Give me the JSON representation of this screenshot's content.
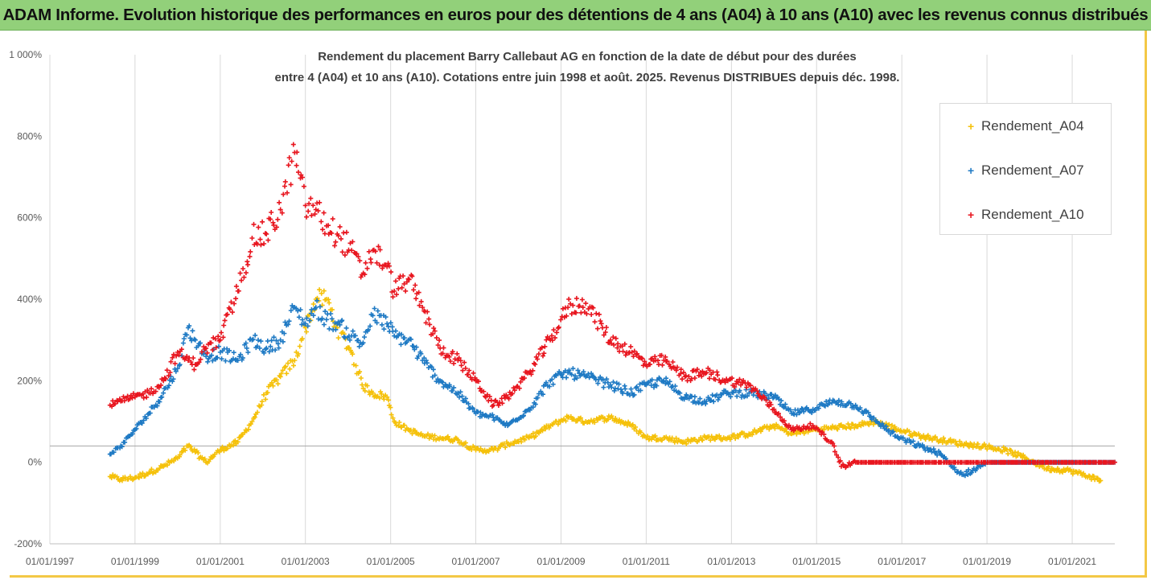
{
  "header": {
    "title": "ADAM Informe. Evolution historique des performances en euros pour des détentions de 4 ans (A04) à 10 ans (A10) avec les revenus connus distribués"
  },
  "colors": {
    "header_bg": "#92d07a",
    "A04": "#f5c10a",
    "A07": "#1f7ac4",
    "A10": "#e8161f",
    "frame": "#f3c846"
  },
  "chart_data": {
    "type": "scatter",
    "title_line1": "Rendement du placement Barry Callebaut AG en fonction de la date de début pour des durées",
    "title_line2": "entre 4 (A04) et 10 ans (A10). Cotations entre juin 1998 et août. 2025. Revenus DISTRIBUES depuis déc. 1998.",
    "xlabel": "",
    "ylabel": "",
    "ylim": [
      -200,
      1000
    ],
    "xlim": [
      "01/01/1997",
      "01/01/2022"
    ],
    "y_ticks": [
      "-200%",
      "0%",
      "200%",
      "400%",
      "600%",
      "800%",
      "1 000%"
    ],
    "y_tick_values": [
      -200,
      0,
      200,
      400,
      600,
      800,
      1000
    ],
    "x_ticks": [
      "01/01/1997",
      "01/01/1999",
      "01/01/2001",
      "01/01/2003",
      "01/01/2005",
      "01/01/2007",
      "01/01/2009",
      "01/01/2011",
      "01/01/2013",
      "01/01/2015",
      "01/01/2017",
      "01/01/2019",
      "01/01/2021"
    ],
    "reference_line_y": 40,
    "grid": "vertical",
    "legend_position": "right",
    "marker": "+",
    "series": [
      {
        "name": "Rendement_A04",
        "color_key": "A04",
        "points": [
          [
            "1998-06-01",
            -35
          ],
          [
            "1998-09-01",
            -42
          ],
          [
            "1999-01-01",
            -38
          ],
          [
            "1999-05-01",
            -25
          ],
          [
            "1999-09-01",
            -10
          ],
          [
            "2000-01-01",
            10
          ],
          [
            "2000-04-01",
            40
          ],
          [
            "2000-06-01",
            25
          ],
          [
            "2000-09-01",
            0
          ],
          [
            "2001-01-01",
            30
          ],
          [
            "2001-06-01",
            50
          ],
          [
            "2001-10-01",
            100
          ],
          [
            "2002-02-01",
            170
          ],
          [
            "2002-06-01",
            210
          ],
          [
            "2002-10-01",
            250
          ],
          [
            "2003-01-01",
            330
          ],
          [
            "2003-04-01",
            400
          ],
          [
            "2003-07-01",
            400
          ],
          [
            "2003-10-01",
            330
          ],
          [
            "2004-02-01",
            270
          ],
          [
            "2004-05-01",
            190
          ],
          [
            "2004-08-01",
            170
          ],
          [
            "2004-12-01",
            160
          ],
          [
            "2005-02-01",
            100
          ],
          [
            "2005-06-01",
            80
          ],
          [
            "2005-10-01",
            65
          ],
          [
            "2006-03-01",
            60
          ],
          [
            "2006-08-01",
            55
          ],
          [
            "2007-01-01",
            30
          ],
          [
            "2007-06-01",
            30
          ],
          [
            "2007-10-01",
            45
          ],
          [
            "2008-04-01",
            60
          ],
          [
            "2008-10-01",
            90
          ],
          [
            "2009-03-01",
            110
          ],
          [
            "2009-08-01",
            100
          ],
          [
            "2010-03-01",
            110
          ],
          [
            "2010-09-01",
            90
          ],
          [
            "2011-01-01",
            60
          ],
          [
            "2011-06-01",
            60
          ],
          [
            "2011-12-01",
            50
          ],
          [
            "2012-06-01",
            60
          ],
          [
            "2012-12-01",
            60
          ],
          [
            "2013-06-01",
            70
          ],
          [
            "2014-01-01",
            90
          ],
          [
            "2014-06-01",
            70
          ],
          [
            "2014-12-01",
            80
          ],
          [
            "2015-06-01",
            85
          ],
          [
            "2015-12-01",
            90
          ],
          [
            "2016-06-01",
            100
          ],
          [
            "2016-12-01",
            80
          ],
          [
            "2017-06-01",
            65
          ],
          [
            "2017-12-01",
            55
          ],
          [
            "2018-06-01",
            45
          ],
          [
            "2018-12-01",
            40
          ],
          [
            "2019-06-01",
            30
          ],
          [
            "2019-12-01",
            10
          ],
          [
            "2020-06-01",
            -15
          ],
          [
            "2020-12-01",
            -20
          ],
          [
            "2021-06-01",
            -35
          ],
          [
            "2021-09-01",
            -45
          ]
        ]
      },
      {
        "name": "Rendement_A07",
        "color_key": "A07",
        "points": [
          [
            "1998-06-01",
            20
          ],
          [
            "1998-09-01",
            40
          ],
          [
            "1999-01-01",
            80
          ],
          [
            "1999-05-01",
            120
          ],
          [
            "1999-09-01",
            170
          ],
          [
            "2000-01-01",
            230
          ],
          [
            "2000-04-01",
            330
          ],
          [
            "2000-06-01",
            300
          ],
          [
            "2000-09-01",
            260
          ],
          [
            "2001-01-01",
            270
          ],
          [
            "2001-06-01",
            250
          ],
          [
            "2001-10-01",
            300
          ],
          [
            "2002-02-01",
            280
          ],
          [
            "2002-06-01",
            300
          ],
          [
            "2002-10-01",
            380
          ],
          [
            "2003-01-01",
            340
          ],
          [
            "2003-04-01",
            380
          ],
          [
            "2003-07-01",
            350
          ],
          [
            "2003-10-01",
            340
          ],
          [
            "2004-02-01",
            310
          ],
          [
            "2004-05-01",
            290
          ],
          [
            "2004-08-01",
            360
          ],
          [
            "2004-12-01",
            340
          ],
          [
            "2005-02-01",
            310
          ],
          [
            "2005-06-01",
            300
          ],
          [
            "2005-10-01",
            250
          ],
          [
            "2006-03-01",
            200
          ],
          [
            "2006-08-01",
            170
          ],
          [
            "2007-01-01",
            120
          ],
          [
            "2007-06-01",
            110
          ],
          [
            "2007-10-01",
            90
          ],
          [
            "2008-04-01",
            130
          ],
          [
            "2008-10-01",
            200
          ],
          [
            "2009-03-01",
            220
          ],
          [
            "2009-08-01",
            210
          ],
          [
            "2010-03-01",
            190
          ],
          [
            "2010-09-01",
            170
          ],
          [
            "2011-01-01",
            190
          ],
          [
            "2011-06-01",
            200
          ],
          [
            "2011-12-01",
            160
          ],
          [
            "2012-06-01",
            150
          ],
          [
            "2012-12-01",
            170
          ],
          [
            "2013-06-01",
            170
          ],
          [
            "2014-01-01",
            160
          ],
          [
            "2014-06-01",
            120
          ],
          [
            "2014-12-01",
            130
          ],
          [
            "2015-06-01",
            150
          ],
          [
            "2015-12-01",
            140
          ],
          [
            "2016-06-01",
            100
          ],
          [
            "2016-12-01",
            60
          ],
          [
            "2017-06-01",
            40
          ],
          [
            "2017-12-01",
            20
          ],
          [
            "2018-03-01",
            -10
          ],
          [
            "2018-06-01",
            -30
          ],
          [
            "2018-09-01",
            -20
          ],
          [
            "2019-01-01",
            0
          ],
          [
            "2020-06-01",
            0
          ],
          [
            "2022-01-01",
            0
          ]
        ]
      },
      {
        "name": "Rendement_A10",
        "color_key": "A10",
        "points": [
          [
            "1998-06-01",
            140
          ],
          [
            "1998-09-01",
            150
          ],
          [
            "1999-01-01",
            160
          ],
          [
            "1999-05-01",
            170
          ],
          [
            "1999-09-01",
            200
          ],
          [
            "2000-01-01",
            270
          ],
          [
            "2000-04-01",
            250
          ],
          [
            "2000-06-01",
            240
          ],
          [
            "2000-09-01",
            280
          ],
          [
            "2001-01-01",
            300
          ],
          [
            "2001-06-01",
            420
          ],
          [
            "2001-10-01",
            550
          ],
          [
            "2002-02-01",
            560
          ],
          [
            "2002-06-01",
            620
          ],
          [
            "2002-10-01",
            760
          ],
          [
            "2003-01-01",
            630
          ],
          [
            "2003-04-01",
            620
          ],
          [
            "2003-07-01",
            580
          ],
          [
            "2003-10-01",
            560
          ],
          [
            "2004-02-01",
            520
          ],
          [
            "2004-05-01",
            460
          ],
          [
            "2004-08-01",
            520
          ],
          [
            "2004-12-01",
            480
          ],
          [
            "2005-02-01",
            420
          ],
          [
            "2005-06-01",
            450
          ],
          [
            "2005-10-01",
            380
          ],
          [
            "2006-03-01",
            280
          ],
          [
            "2006-08-01",
            250
          ],
          [
            "2007-01-01",
            200
          ],
          [
            "2007-06-01",
            140
          ],
          [
            "2007-10-01",
            160
          ],
          [
            "2008-04-01",
            220
          ],
          [
            "2008-10-01",
            300
          ],
          [
            "2009-03-01",
            380
          ],
          [
            "2009-08-01",
            390
          ],
          [
            "2010-03-01",
            300
          ],
          [
            "2010-09-01",
            270
          ],
          [
            "2011-01-01",
            240
          ],
          [
            "2011-06-01",
            250
          ],
          [
            "2011-12-01",
            210
          ],
          [
            "2012-06-01",
            220
          ],
          [
            "2012-12-01",
            200
          ],
          [
            "2013-06-01",
            190
          ],
          [
            "2014-01-01",
            130
          ],
          [
            "2014-06-01",
            80
          ],
          [
            "2014-12-01",
            90
          ],
          [
            "2015-06-01",
            40
          ],
          [
            "2015-08-01",
            -10
          ],
          [
            "2015-12-01",
            0
          ],
          [
            "2016-06-01",
            0
          ],
          [
            "2018-01-01",
            0
          ],
          [
            "2020-01-01",
            0
          ],
          [
            "2022-01-01",
            0
          ]
        ]
      }
    ]
  }
}
